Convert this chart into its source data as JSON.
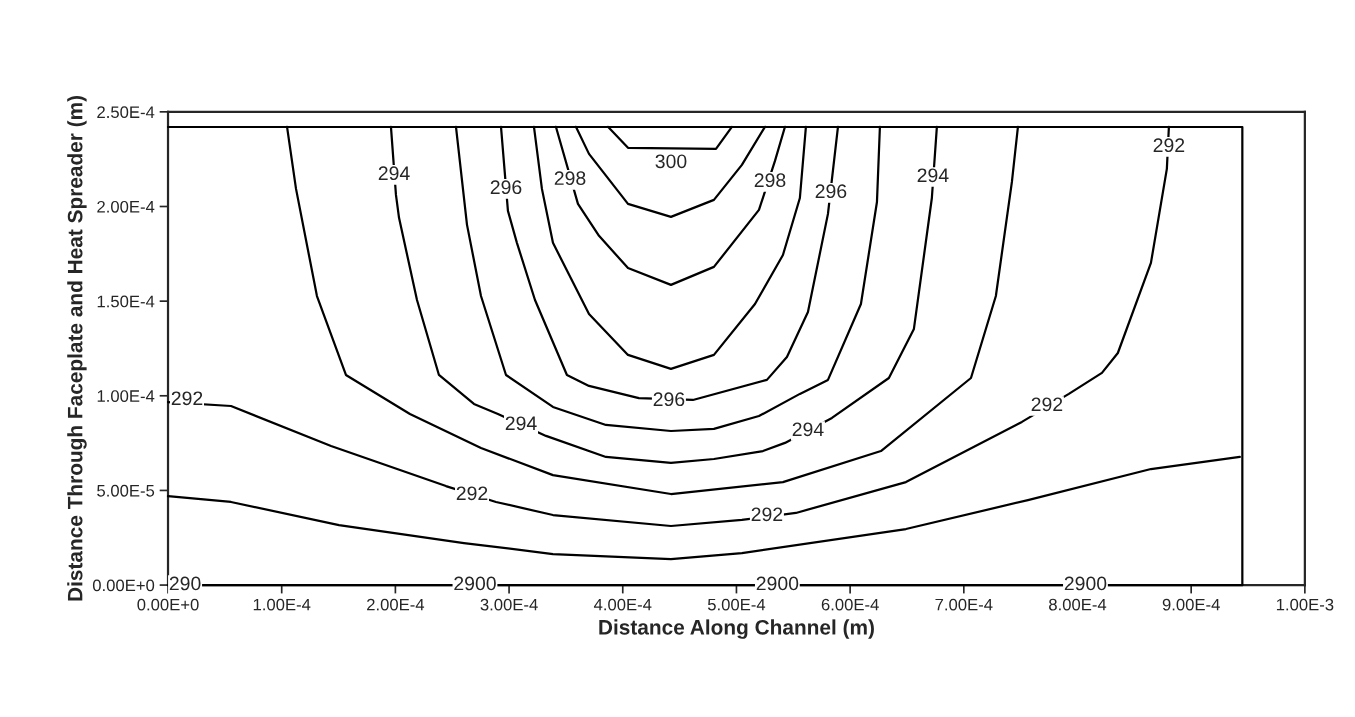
{
  "chart_data": {
    "type": "line",
    "xlabel": "Distance Along Channel (m)",
    "ylabel": "Distance Through Faceplate and Heat Spreader (m)",
    "xlim": [
      0,
      0.001
    ],
    "ylim": [
      0,
      0.00025
    ],
    "xticks": [
      {
        "value": 0,
        "label": "0.00E+0"
      },
      {
        "value": 0.0001,
        "label": "1.00E-4"
      },
      {
        "value": 0.0002,
        "label": "2.00E-4"
      },
      {
        "value": 0.0003,
        "label": "3.00E-4"
      },
      {
        "value": 0.0004,
        "label": "4.00E-4"
      },
      {
        "value": 0.0005,
        "label": "5.00E-4"
      },
      {
        "value": 0.0006,
        "label": "6.00E-4"
      },
      {
        "value": 0.0007,
        "label": "7.00E-4"
      },
      {
        "value": 0.0008,
        "label": "8.00E-4"
      },
      {
        "value": 0.0009,
        "label": "9.00E-4"
      },
      {
        "value": 0.001,
        "label": "1.00E-3"
      }
    ],
    "yticks": [
      {
        "value": 0,
        "label": "0.00E+0"
      },
      {
        "value": 5e-05,
        "label": "5.00E-5"
      },
      {
        "value": 0.0001,
        "label": "1.00E-4"
      },
      {
        "value": 0.00015,
        "label": "1.50E-4"
      },
      {
        "value": 0.0002,
        "label": "2.00E-4"
      },
      {
        "value": 0.00025,
        "label": "2.50E-4"
      }
    ],
    "grid": false,
    "marker": "none",
    "line_style": "solid",
    "series": [
      {
        "color": "#000000",
        "x": [
          0,
          0.000945,
          0.000945
        ],
        "values": [
          0.000242,
          0.000242,
          0
        ]
      },
      {
        "color": "#000000",
        "x": [
          0,
          5.54e-05,
          0.0001504,
          0.0002603,
          0.0003386,
          0.0004424,
          0.0005048,
          0.0006491,
          0.0007564,
          0.0008646,
          0.0009428
        ],
        "values": [
          4.7e-05,
          4.39e-05,
          3.17e-05,
          2.22e-05,
          1.64e-05,
          1.37e-05,
          1.69e-05,
          2.96e-05,
          4.49e-05,
          6.13e-05,
          6.77e-05
        ]
      },
      {
        "color": "#000000",
        "x": [
          0,
          5.54e-05,
          0.0001434,
          0.0002445,
          0.0002885,
          0.0003386,
          0.0004424,
          0.0005048,
          0.0005523,
          0.0006491,
          0.0007511,
          0.0007924,
          0.0008215,
          0.0008355,
          0.0008646,
          0.0008786,
          0.0008804
        ],
        "values": [
          9.67e-05,
          9.46e-05,
          7.35e-05,
          5.23e-05,
          4.39e-05,
          3.7e-05,
          3.12e-05,
          3.44e-05,
          3.81e-05,
          5.44e-05,
          8.62e-05,
          0.000101,
          0.0001121,
          0.0001226,
          0.0001702,
          0.0002199,
          0.0002421
        ]
      },
      {
        "color": "#000000",
        "x": [
          0.0001047,
          0.0001126,
          0.000131,
          0.0001565,
          0.0002128,
          0.0002753,
          0.0003386,
          0.0004424,
          0.0005409,
          0.0006271,
          0.0007063,
          0.0007282,
          0.0007423,
          0.0007476
        ],
        "values": [
          0.0002421,
          0.0002093,
          0.0001527,
          0.000111,
          9.04e-05,
          7.24e-05,
          5.81e-05,
          4.81e-05,
          5.44e-05,
          7.08e-05,
          0.0001094,
          0.0001527,
          0.000213,
          0.0002421
        ]
      },
      {
        "color": "#000000",
        "x": [
          0.0001961,
          0.0002005,
          0.0002032,
          0.000219,
          0.0002383,
          0.0002691,
          0.0002902,
          0.0003325,
          0.0003852,
          0.0004424,
          0.0004802,
          0.0005233,
          0.0005427,
          0.000584,
          0.0006341,
          0.0006561,
          0.0006719,
          0.0006763
        ],
        "values": [
          0.0002421,
          0.0002061,
          0.000194,
          0.0001506,
          0.000111,
          9.57e-05,
          9.04e-05,
          7.88e-05,
          6.77e-05,
          6.45e-05,
          6.66e-05,
          7.08e-05,
          7.51e-05,
          8.83e-05,
          0.0001094,
          0.0001353,
          0.0002045,
          0.0002421
        ]
      },
      {
        "color": "#000000",
        "x": [
          0.0002533,
          0.000263,
          0.0002753,
          0.0002973,
          0.0003386,
          0.0003852,
          0.0004424,
          0.0004802,
          0.0005198,
          0.0005558,
          0.0005805,
          0.0006095,
          0.0006236,
          0.0006262
        ],
        "values": [
          0.0002421,
          0.0001903,
          0.0001527,
          0.000111,
          9.41e-05,
          8.46e-05,
          8.14e-05,
          8.25e-05,
          8.93e-05,
          0.000101,
          0.0001084,
          0.0001485,
          0.0002024,
          0.0002421
        ]
      },
      {
        "color": "#000000",
        "x": [
          0.0002929,
          0.000299,
          0.0003069,
          0.0003228,
          0.0003509,
          0.0003703,
          0.0004142,
          0.0004617,
          0.0005268,
          0.0005444,
          0.0005629,
          0.0005805,
          0.0005893
        ],
        "values": [
          0.0002421,
          0.0001977,
          0.0001808,
          0.0001506,
          0.000111,
          0.0001052,
          9.88e-05,
          9.78e-05,
          0.0001084,
          0.0001205,
          0.0001443,
          0.0001961,
          0.0002421
        ]
      },
      {
        "color": "#000000",
        "x": [
          0.0003219,
          0.0003289,
          0.0003386,
          0.0003703,
          0.0004046,
          0.0004424,
          0.0004802,
          0.0005163,
          0.0005409,
          0.0005558,
          0.0005611
        ],
        "values": [
          0.0002421,
          0.0002093,
          0.0001808,
          0.0001432,
          0.0001216,
          0.0001142,
          0.0001216,
          0.0001485,
          0.0001744,
          0.0002045,
          0.0002421
        ]
      },
      {
        "color": "#000000",
        "x": [
          0.0003412,
          0.0003606,
          0.0003791,
          0.0004046,
          0.0004424,
          0.0004802,
          0.0005198,
          0.0005339,
          0.0005427
        ],
        "values": [
          0.0002421,
          0.0002014,
          0.0001845,
          0.0001675,
          0.0001586,
          0.0001681,
          0.0001982,
          0.0002241,
          0.0002421
        ]
      },
      {
        "color": "#000000",
        "x": [
          0.0003588,
          0.0003703,
          0.0004046,
          0.0004424,
          0.0004802,
          0.0005048,
          0.0005251
        ],
        "values": [
          0.0002421,
          0.0002278,
          0.0002014,
          0.0001945,
          0.0002035,
          0.000222,
          0.0002421
        ]
      },
      {
        "color": "#000000",
        "x": [
          0.000387,
          0.0004046,
          0.0004424,
          0.000482,
          0.000496
        ],
        "values": [
          0.0002421,
          0.000231,
          null,
          0.0002304,
          0.0002421
        ]
      },
      {
        "color": "#000000",
        "x": [
          0,
          0.000945
        ],
        "values": [
          0,
          0
        ]
      }
    ],
    "annotations": [
      {
        "text": "292",
        "x": 1.67e-05,
        "y": 9.78e-05
      },
      {
        "text": "292",
        "x": 0.0002674,
        "y": 4.76e-05
      },
      {
        "text": "292",
        "x": 0.0005268,
        "y": 3.65e-05
      },
      {
        "text": "292",
        "x": 0.0007731,
        "y": 9.46e-05
      },
      {
        "text": "292",
        "x": 0.0008804,
        "y": 0.0002315
      },
      {
        "text": "294",
        "x": 0.0001988,
        "y": 0.0002167
      },
      {
        "text": "294",
        "x": 0.0003105,
        "y": 8.46e-05
      },
      {
        "text": "294",
        "x": 0.0005629,
        "y": 8.14e-05
      },
      {
        "text": "294",
        "x": 0.0006728,
        "y": 0.0002156
      },
      {
        "text": "296",
        "x": 0.0002973,
        "y": 0.0002093
      },
      {
        "text": "296",
        "x": 0.0004406,
        "y": 9.73e-05
      },
      {
        "text": "296",
        "x": 0.0005831,
        "y": 0.0002072
      },
      {
        "text": "298",
        "x": 0.0003536,
        "y": 0.0002141
      },
      {
        "text": "298",
        "x": 0.0005295,
        "y": 0.000213
      },
      {
        "text": "300",
        "x": 0.0004424,
        "y": 0.000223
      },
      {
        "text": "290",
        "x": 1.5e-05,
        "y": 0
      },
      {
        "text": "2900",
        "x": 0.00027,
        "y": 0
      },
      {
        "text": "2900",
        "x": 0.000536,
        "y": 0
      },
      {
        "text": "2900",
        "x": 0.000807,
        "y": 0
      }
    ]
  }
}
